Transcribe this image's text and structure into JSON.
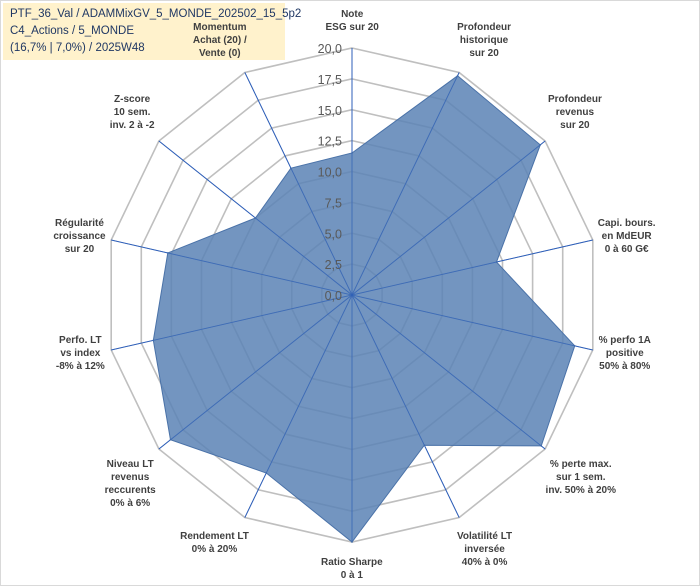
{
  "title_box": {
    "line1": "PTF_36_Val / ADAMMixGV_5_MONDE_202502_15_5p2",
    "line2": "C4_Actions / 5_MONDE",
    "line3": "(16,7% | 7,0%) / 2025W48"
  },
  "chart_data": {
    "type": "radar",
    "title": "PTF_36_Val / ADAMMixGV_5_MONDE_202502_15_5p2",
    "rlim": [
      0,
      20
    ],
    "ticks": [
      0,
      2.5,
      5,
      7.5,
      10,
      12.5,
      15,
      17.5,
      20
    ],
    "tick_labels": [
      "0,0",
      "2,5",
      "5,0",
      "7,5",
      "10,0",
      "12,5",
      "15,0",
      "17,5",
      "20,0"
    ],
    "categories": [
      [
        "Note",
        "ESG sur 20"
      ],
      [
        "Profondeur",
        "historique",
        "sur 20"
      ],
      [
        "Profondeur",
        "revenus",
        "sur 20"
      ],
      [
        "Capi. bours.",
        "en MdEUR",
        "0 à 60 G€"
      ],
      [
        "% perfo 1A",
        "positive",
        "50% à 80%"
      ],
      [
        "% perte max.",
        "sur 1 sem.",
        "inv. 50% à 20%"
      ],
      [
        "Volatilité LT",
        "inversée",
        "40% à 0%"
      ],
      [
        "Ratio Sharpe",
        "0 à 1"
      ],
      [
        "Rendement LT",
        "0% à 20%"
      ],
      [
        "Niveau LT",
        "revenus",
        "reccurents",
        "0% à 6%"
      ],
      [
        "Perfo. LT",
        "vs index",
        "-8% à 12%"
      ],
      [
        "Régularité",
        "croissance",
        "sur 20"
      ],
      [
        "Z-score",
        "10 sem.",
        "inv. 2 à -2"
      ],
      [
        "Momentum",
        "Achat (20) /",
        "Vente (0)"
      ]
    ],
    "series": [
      {
        "name": "PTF_36_Val",
        "values": [
          11.5,
          19.7,
          19.5,
          12.0,
          18.5,
          19.6,
          13.5,
          20.0,
          16.0,
          18.8,
          16.5,
          15.3,
          10.0,
          11.4
        ]
      }
    ],
    "colors": {
      "fill": "#5b82b5",
      "line": "#4a72a8",
      "grid": "#bfbfbf",
      "axis": "#2e5fb8",
      "title_bg": "#fff2cc",
      "title_text": "#203864"
    }
  }
}
